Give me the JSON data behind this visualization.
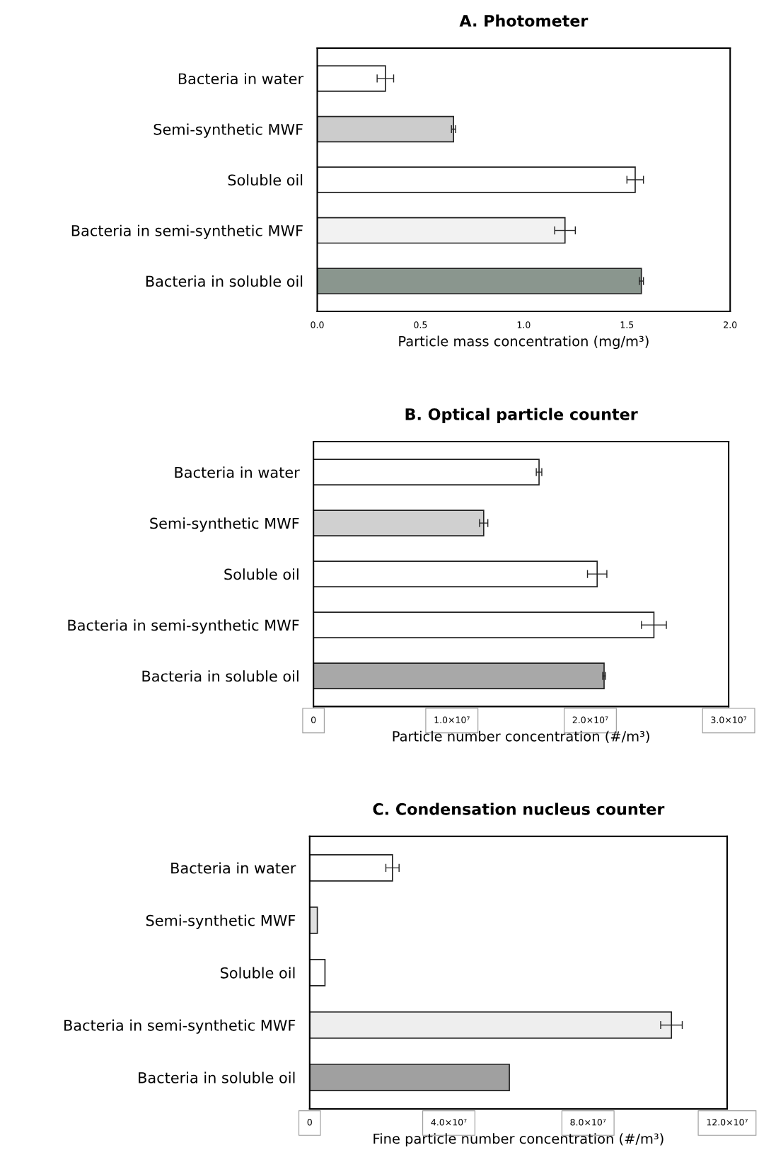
{
  "chart_data": [
    {
      "type": "bar",
      "orientation": "horizontal",
      "title": "A. Photometer",
      "xlabel": "Particle mass concentration (mg/m³)",
      "categories": [
        "Bacteria in water",
        "Semi-synthetic MWF",
        "Soluble oil",
        "Bacteria in semi-synthetic MWF",
        "Bacteria in soluble oil"
      ],
      "values": [
        0.33,
        0.66,
        1.54,
        1.2,
        1.57
      ],
      "errors": [
        0.04,
        0.01,
        0.04,
        0.05,
        0.01
      ],
      "colors": [
        "#ffffff",
        "#cccccc",
        "#ffffff",
        "#f2f2f2",
        "#8a968e"
      ],
      "xlim": [
        0,
        2.0
      ],
      "xticks": [
        {
          "value": 0,
          "label": "0.0"
        },
        {
          "value": 0.5,
          "label": "0.5"
        },
        {
          "value": 1.0,
          "label": "1.0"
        },
        {
          "value": 1.5,
          "label": "1.5"
        },
        {
          "value": 2.0,
          "label": "2.0"
        }
      ],
      "grid": false
    },
    {
      "type": "bar",
      "orientation": "horizontal",
      "title": "B. Optical particle counter",
      "xlabel": "Particle number concentration (#/m³)",
      "categories": [
        "Bacteria in water",
        "Semi-synthetic MWF",
        "Soluble oil",
        "Bacteria in semi-synthetic MWF",
        "Bacteria in soluble oil"
      ],
      "values": [
        16300000,
        12300000,
        20500000,
        24600000,
        21000000
      ],
      "errors": [
        200000,
        300000,
        700000,
        900000,
        100000
      ],
      "colors": [
        "#ffffff",
        "#d0d0d0",
        "#ffffff",
        "#ffffff",
        "#a8a8a8"
      ],
      "xlim": [
        0,
        30000000
      ],
      "xticks": [
        0,
        {
          "value": 10000000,
          "label": "1.0×10⁷"
        },
        {
          "value": 20000000,
          "label": "2.0×10⁷"
        },
        {
          "value": 30000000,
          "label": "3.0×10⁷"
        }
      ],
      "grid": false
    },
    {
      "type": "bar",
      "orientation": "horizontal",
      "title": "C. Condensation nucleus counter",
      "xlabel": "Fine particle number concentration (#/m³)",
      "categories": [
        "Bacteria in water",
        "Semi-synthetic MWF",
        "Soluble oil",
        "Bacteria in semi-synthetic MWF",
        "Bacteria in soluble oil"
      ],
      "values": [
        23800000,
        2200000,
        4400000,
        104000000,
        57400000
      ],
      "errors": [
        1900000,
        null,
        null,
        3100000,
        null
      ],
      "colors": [
        "#ffffff",
        "#e0e0e0",
        "#ffffff",
        "#eeeeee",
        "#a0a0a0"
      ],
      "xlim": [
        0,
        120000000
      ],
      "xticks": [
        0,
        {
          "value": 40000000,
          "label": "4.0×10⁷"
        },
        {
          "value": 80000000,
          "label": "8.0×10⁷"
        },
        {
          "value": 120000000,
          "label": "12.0×10⁷"
        }
      ],
      "grid": false
    }
  ]
}
